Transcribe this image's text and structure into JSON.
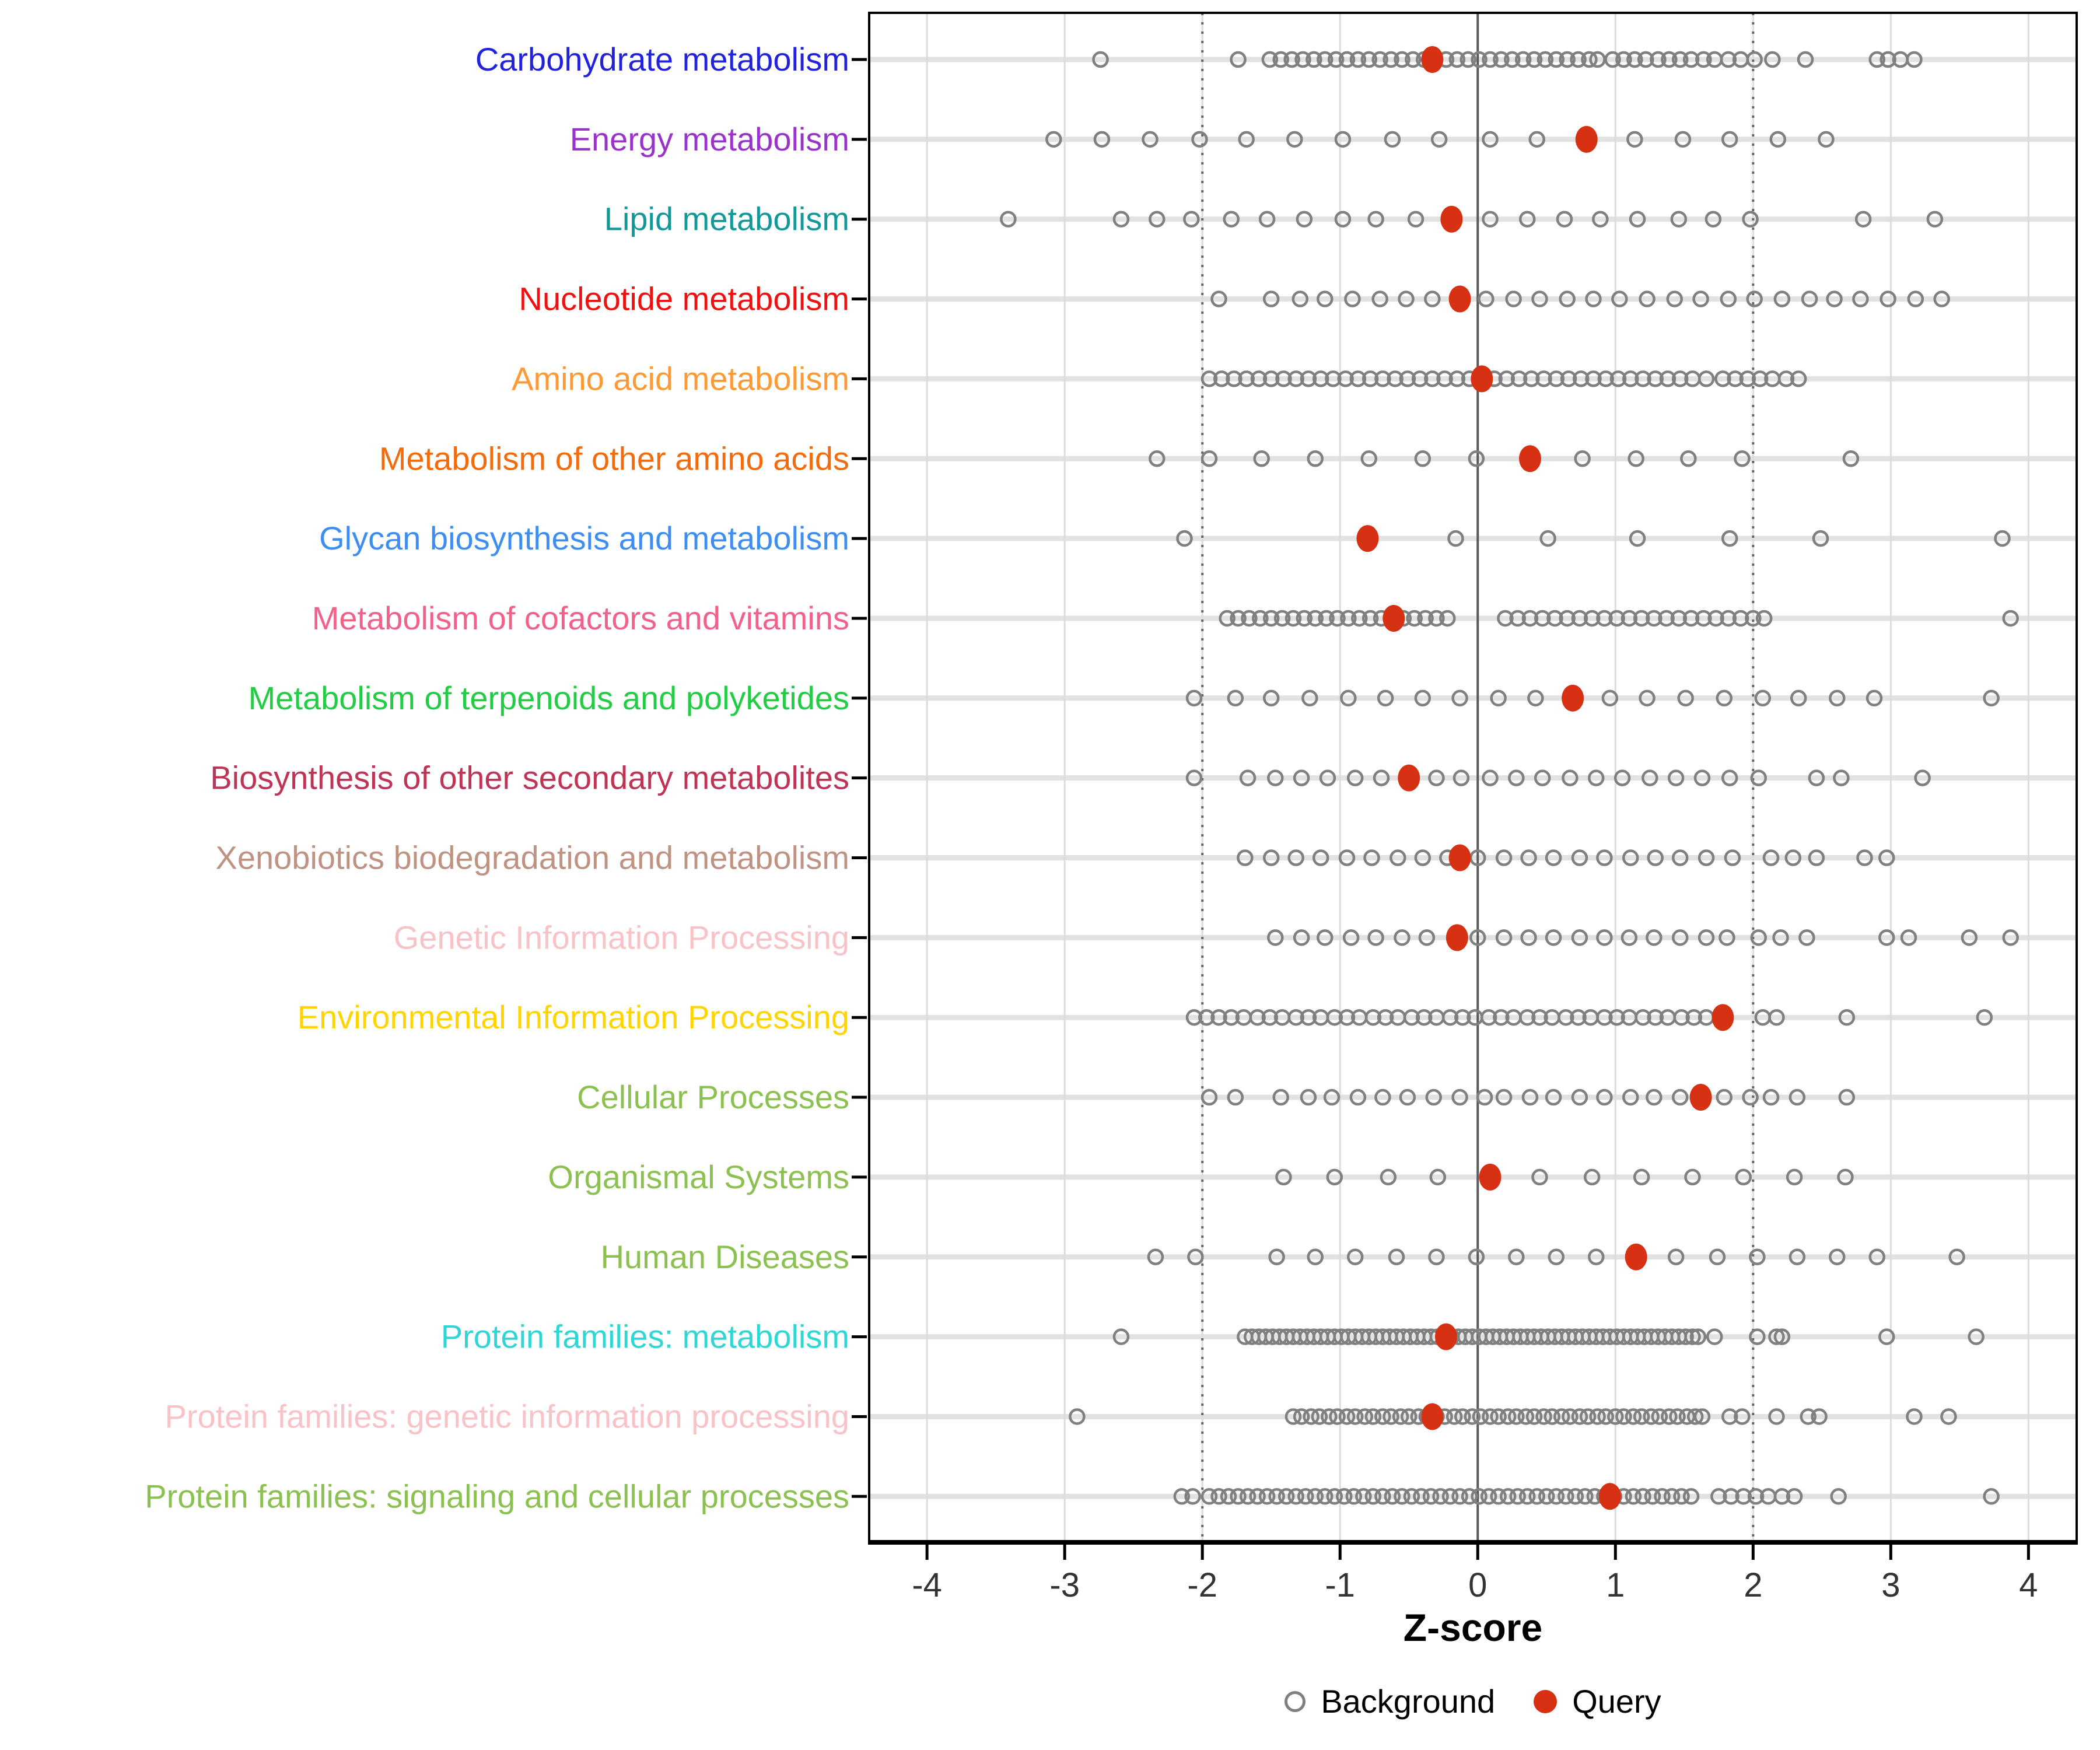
{
  "chart_data": {
    "type": "scatter",
    "variant": "dot-strip-plot",
    "xlabel": "Z-score",
    "xticks": [
      -4,
      -3,
      -2,
      -1,
      0,
      1,
      2,
      3,
      4
    ],
    "xlim": [
      -4.42,
      4.35
    ],
    "reference_lines": {
      "solid": [
        0
      ],
      "dotted": [
        -2,
        2
      ]
    },
    "grid": true,
    "legend": {
      "background": "Background",
      "query": "Query",
      "position": "bottom"
    },
    "colors": {
      "query": "#d63113",
      "background_stroke": "#808080",
      "row_band": "#e2e2e2",
      "gridline": "#dcdcdc",
      "ref_dotted": "#666666",
      "ref_solid": "#595959",
      "axis_text": "#333333",
      "panel_border": "#000000"
    },
    "series": [
      {
        "label": "Carbohydrate metabolism",
        "color": "#2222dd",
        "query": -0.33,
        "background": [
          -2.74,
          -1.74,
          -1.51,
          -1.43,
          -1.35,
          -1.27,
          -1.19,
          -1.11,
          -1.03,
          -0.95,
          -0.87,
          -0.79,
          -0.71,
          -0.63,
          -0.55,
          -0.47,
          -0.39,
          -0.31,
          -0.23,
          -0.15,
          -0.07,
          0.01,
          0.09,
          0.17,
          0.25,
          0.33,
          0.41,
          0.49,
          0.57,
          0.65,
          0.73,
          0.81,
          0.87,
          0.98,
          1.06,
          1.14,
          1.22,
          1.31,
          1.39,
          1.47,
          1.55,
          1.64,
          1.72,
          1.82,
          1.91,
          2.01,
          2.14,
          2.38,
          2.9,
          2.98,
          3.07,
          3.17
        ]
      },
      {
        "label": "Energy metabolism",
        "color": "#9933cc",
        "query": 0.79,
        "background": [
          -3.08,
          -2.73,
          -2.38,
          -2.02,
          -1.68,
          -1.33,
          -0.98,
          -0.62,
          -0.28,
          0.09,
          0.43,
          1.14,
          1.49,
          1.83,
          2.18,
          2.53
        ]
      },
      {
        "label": "Lipid metabolism",
        "color": "#119999",
        "query": -0.19,
        "background": [
          -3.41,
          -2.59,
          -2.33,
          -2.08,
          -1.79,
          -1.53,
          -1.26,
          -0.98,
          -0.74,
          -0.45,
          0.09,
          0.36,
          0.63,
          0.89,
          1.16,
          1.46,
          1.71,
          1.98,
          2.8,
          3.32
        ]
      },
      {
        "label": "Nucleotide metabolism",
        "color": "#ee1111",
        "query": -0.13,
        "background": [
          -1.88,
          -1.5,
          -1.29,
          -1.11,
          -0.91,
          -0.71,
          -0.52,
          -0.33,
          0.06,
          0.26,
          0.45,
          0.65,
          0.84,
          1.03,
          1.23,
          1.43,
          1.62,
          1.82,
          2.01,
          2.21,
          2.41,
          2.59,
          2.78,
          2.98,
          3.18,
          3.37
        ]
      },
      {
        "label": "Amino acid metabolism",
        "color": "#ff9933",
        "query": 0.03,
        "background": [
          -1.95,
          -1.86,
          -1.77,
          -1.68,
          -1.59,
          -1.5,
          -1.41,
          -1.32,
          -1.23,
          -1.14,
          -1.05,
          -0.96,
          -0.87,
          -0.78,
          -0.69,
          -0.6,
          -0.51,
          -0.42,
          -0.33,
          -0.24,
          -0.15,
          -0.06,
          0.12,
          0.21,
          0.3,
          0.39,
          0.48,
          0.57,
          0.66,
          0.75,
          0.84,
          0.93,
          1.02,
          1.11,
          1.2,
          1.29,
          1.38,
          1.47,
          1.56,
          1.66,
          1.78,
          1.87,
          1.96,
          2.05,
          2.14,
          2.24,
          2.33
        ]
      },
      {
        "label": "Metabolism of other amino acids",
        "color": "#f26b0d",
        "query": 0.38,
        "background": [
          -2.33,
          -1.95,
          -1.57,
          -1.18,
          -0.79,
          -0.4,
          -0.01,
          0.76,
          1.15,
          1.53,
          1.92,
          2.71
        ]
      },
      {
        "label": "Glycan biosynthesis and metabolism",
        "color": "#3d8df2",
        "query": -0.8,
        "background": [
          -2.13,
          -0.16,
          0.51,
          1.16,
          1.83,
          2.49,
          3.81
        ]
      },
      {
        "label": "Metabolism of cofactors and vitamins",
        "color": "#f26189",
        "query": -0.61,
        "background": [
          -1.82,
          -1.74,
          -1.66,
          -1.58,
          -1.5,
          -1.42,
          -1.34,
          -1.26,
          -1.18,
          -1.1,
          -1.02,
          -0.94,
          -0.86,
          -0.78,
          -0.7,
          -0.62,
          -0.54,
          -0.46,
          -0.38,
          -0.3,
          -0.22,
          0.2,
          0.29,
          0.38,
          0.47,
          0.56,
          0.65,
          0.74,
          0.83,
          0.92,
          1.01,
          1.1,
          1.19,
          1.28,
          1.37,
          1.46,
          1.55,
          1.64,
          1.73,
          1.82,
          1.91,
          2.0,
          2.08,
          3.87
        ]
      },
      {
        "label": "Metabolism of terpenoids and polyketides",
        "color": "#22cc44",
        "query": 0.69,
        "background": [
          -2.06,
          -1.76,
          -1.5,
          -1.22,
          -0.94,
          -0.67,
          -0.4,
          -0.13,
          0.15,
          0.42,
          0.96,
          1.23,
          1.51,
          1.79,
          2.07,
          2.33,
          2.61,
          2.88,
          3.73
        ]
      },
      {
        "label": "Biosynthesis of other secondary metabolites",
        "color": "#bf3355",
        "query": -0.5,
        "background": [
          -2.06,
          -1.67,
          -1.47,
          -1.28,
          -1.09,
          -0.89,
          -0.7,
          -0.3,
          -0.12,
          0.09,
          0.28,
          0.47,
          0.67,
          0.86,
          1.05,
          1.25,
          1.44,
          1.63,
          1.83,
          2.04,
          2.46,
          2.64,
          3.23
        ]
      },
      {
        "label": "Xenobiotics biodegradation and metabolism",
        "color": "#bf9383",
        "query": -0.13,
        "background": [
          -1.69,
          -1.5,
          -1.32,
          -1.14,
          -0.95,
          -0.77,
          -0.58,
          -0.4,
          -0.22,
          0.0,
          0.19,
          0.37,
          0.55,
          0.74,
          0.92,
          1.11,
          1.29,
          1.47,
          1.66,
          1.85,
          2.13,
          2.29,
          2.46,
          2.81,
          2.97
        ]
      },
      {
        "label": "Genetic Information Processing",
        "color": "#f9c2c6",
        "query": -0.15,
        "background": [
          -1.47,
          -1.28,
          -1.11,
          -0.92,
          -0.74,
          -0.55,
          -0.37,
          0.0,
          0.19,
          0.37,
          0.55,
          0.74,
          0.92,
          1.1,
          1.28,
          1.47,
          1.66,
          1.81,
          2.04,
          2.2,
          2.39,
          2.97,
          3.13,
          3.57,
          3.87
        ]
      },
      {
        "label": "Environmental Information Processing",
        "color": "#ffd400",
        "query": 1.78,
        "background": [
          -2.06,
          -1.97,
          -1.88,
          -1.79,
          -1.7,
          -1.6,
          -1.51,
          -1.42,
          -1.32,
          -1.23,
          -1.14,
          -1.04,
          -0.95,
          -0.86,
          -0.76,
          -0.67,
          -0.58,
          -0.48,
          -0.39,
          -0.3,
          -0.2,
          -0.11,
          -0.02,
          0.08,
          0.17,
          0.26,
          0.36,
          0.45,
          0.54,
          0.64,
          0.73,
          0.82,
          0.92,
          1.01,
          1.1,
          1.2,
          1.29,
          1.38,
          1.48,
          1.57,
          1.66,
          2.07,
          2.17,
          2.68,
          3.68
        ]
      },
      {
        "label": "Cellular Processes",
        "color": "#8cc152",
        "query": 1.62,
        "background": [
          -1.95,
          -1.76,
          -1.43,
          -1.23,
          -1.06,
          -0.87,
          -0.69,
          -0.51,
          -0.32,
          -0.13,
          0.05,
          0.19,
          0.38,
          0.55,
          0.74,
          0.92,
          1.11,
          1.28,
          1.47,
          1.79,
          1.98,
          2.13,
          2.32,
          2.68
        ]
      },
      {
        "label": "Organismal Systems",
        "color": "#8cc152",
        "query": 0.09,
        "background": [
          -1.41,
          -1.04,
          -0.65,
          -0.29,
          0.45,
          0.83,
          1.19,
          1.56,
          1.93,
          2.3,
          2.67
        ]
      },
      {
        "label": "Human Diseases",
        "color": "#8cc152",
        "query": 1.15,
        "background": [
          -2.34,
          -2.05,
          -1.46,
          -1.18,
          -0.89,
          -0.59,
          -0.3,
          -0.01,
          0.28,
          0.57,
          0.86,
          1.44,
          1.74,
          2.03,
          2.32,
          2.61,
          2.9,
          3.48
        ]
      },
      {
        "label": "Protein families: metabolism",
        "color": "#2fd6d6",
        "query": -0.23,
        "background": [
          -2.59,
          -1.69,
          -1.64,
          -1.59,
          -1.54,
          -1.49,
          -1.44,
          -1.39,
          -1.34,
          -1.29,
          -1.24,
          -1.19,
          -1.14,
          -1.09,
          -1.04,
          -0.99,
          -0.94,
          -0.89,
          -0.84,
          -0.79,
          -0.74,
          -0.69,
          -0.64,
          -0.59,
          -0.54,
          -0.49,
          -0.44,
          -0.39,
          -0.34,
          -0.29,
          -0.24,
          -0.19,
          -0.14,
          -0.09,
          -0.04,
          0.01,
          0.06,
          0.11,
          0.16,
          0.21,
          0.26,
          0.31,
          0.36,
          0.41,
          0.46,
          0.51,
          0.56,
          0.61,
          0.66,
          0.71,
          0.76,
          0.81,
          0.86,
          0.91,
          0.96,
          1.01,
          1.06,
          1.11,
          1.16,
          1.21,
          1.26,
          1.31,
          1.36,
          1.41,
          1.46,
          1.51,
          1.56,
          1.6,
          1.72,
          2.03,
          2.17,
          2.21,
          2.97,
          3.62
        ]
      },
      {
        "label": "Protein families: genetic information processing",
        "color": "#f9c2c6",
        "query": -0.33,
        "background": [
          -2.91,
          -1.34,
          -1.28,
          -1.21,
          -1.15,
          -1.08,
          -1.02,
          -0.95,
          -0.89,
          -0.82,
          -0.76,
          -0.69,
          -0.63,
          -0.56,
          -0.5,
          -0.43,
          -0.37,
          -0.3,
          -0.24,
          -0.17,
          -0.11,
          -0.04,
          0.02,
          0.09,
          0.15,
          0.22,
          0.28,
          0.35,
          0.41,
          0.48,
          0.54,
          0.61,
          0.67,
          0.74,
          0.8,
          0.87,
          0.93,
          1.0,
          1.06,
          1.13,
          1.19,
          1.26,
          1.32,
          1.39,
          1.45,
          1.52,
          1.58,
          1.63,
          1.83,
          1.92,
          2.17,
          2.4,
          2.48,
          3.17,
          3.42
        ]
      },
      {
        "label": "Protein families: signaling and cellular processes",
        "color": "#8cc152",
        "query": 0.96,
        "background": [
          -2.15,
          -2.07,
          -1.95,
          -1.88,
          -1.81,
          -1.74,
          -1.67,
          -1.6,
          -1.53,
          -1.46,
          -1.39,
          -1.32,
          -1.25,
          -1.18,
          -1.11,
          -1.04,
          -0.97,
          -0.9,
          -0.83,
          -0.76,
          -0.69,
          -0.62,
          -0.55,
          -0.48,
          -0.41,
          -0.34,
          -0.27,
          -0.2,
          -0.13,
          -0.06,
          0.01,
          0.08,
          0.15,
          0.22,
          0.29,
          0.36,
          0.43,
          0.5,
          0.57,
          0.64,
          0.71,
          0.78,
          0.85,
          0.92,
          0.99,
          1.06,
          1.13,
          1.2,
          1.27,
          1.34,
          1.41,
          1.48,
          1.55,
          1.75,
          1.84,
          1.93,
          2.02,
          2.11,
          2.21,
          2.3,
          2.62,
          3.73
        ]
      }
    ]
  }
}
